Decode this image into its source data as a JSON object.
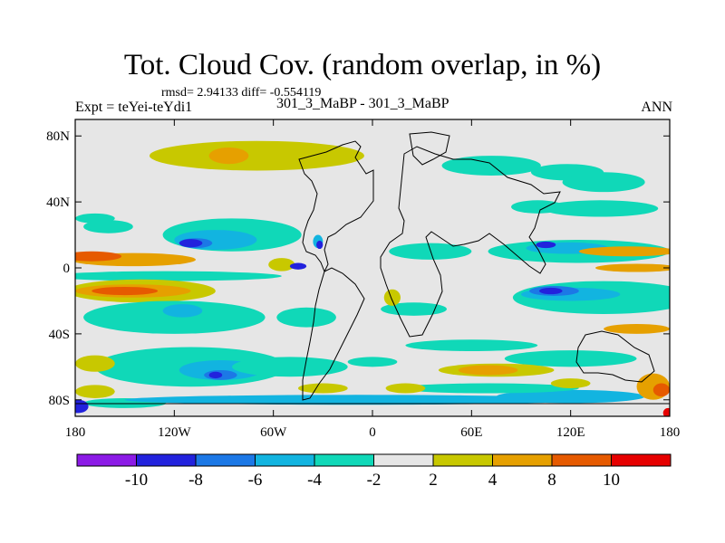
{
  "chart_data": {
    "type": "heatmap",
    "title": "Tot. Cloud Cov. (random overlap, in %)",
    "stats": "rmsd= 2.94133 diff= -0.554119",
    "experiment": "Expt = teYei-teYdi1",
    "case": "301_3_MaBP - 301_3_MaBP",
    "season": "ANN",
    "x_range": [
      -180,
      180
    ],
    "y_range": [
      -90,
      90
    ],
    "x_ticks": [
      {
        "value": -180,
        "label": "180"
      },
      {
        "value": -120,
        "label": "120W"
      },
      {
        "value": -60,
        "label": "60W"
      },
      {
        "value": 0,
        "label": "0"
      },
      {
        "value": 60,
        "label": "60E"
      },
      {
        "value": 120,
        "label": "120E"
      },
      {
        "value": 180,
        "label": "180"
      }
    ],
    "y_ticks": [
      {
        "value": 80,
        "label": "80N"
      },
      {
        "value": 40,
        "label": "40N"
      },
      {
        "value": 0,
        "label": "0"
      },
      {
        "value": -40,
        "label": "40S"
      },
      {
        "value": -80,
        "label": "80S"
      }
    ],
    "colorbar": {
      "levels": [
        "-10",
        "-8",
        "-6",
        "-4",
        "-2",
        "2",
        "4",
        "8",
        "10"
      ],
      "colors": [
        "#8c1be6",
        "#2222dd",
        "#1c78e6",
        "#12b4e0",
        "#10d8b8",
        "#e6e6e6",
        "#c8c800",
        "#e6a000",
        "#e65a00",
        "#e60000"
      ]
    },
    "background_color": "#e6e6e6",
    "regions": [
      {
        "cls": 7,
        "lon": -55,
        "lat": 70,
        "rx": 20,
        "ry": 6
      },
      {
        "cls": 6,
        "lon": -70,
        "lat": 68,
        "rx": 65,
        "ry": 9
      },
      {
        "cls": 7,
        "lon": -87,
        "lat": 68,
        "rx": 12,
        "ry": 5
      },
      {
        "cls": 4,
        "lon": 72,
        "lat": 62,
        "rx": 30,
        "ry": 6
      },
      {
        "cls": 4,
        "lon": 118,
        "lat": 58,
        "rx": 22,
        "ry": 5
      },
      {
        "cls": 4,
        "lon": 140,
        "lat": 52,
        "rx": 25,
        "ry": 6
      },
      {
        "cls": 4,
        "lon": 138,
        "lat": 36,
        "rx": 35,
        "ry": 5
      },
      {
        "cls": 4,
        "lon": 100,
        "lat": 37,
        "rx": 16,
        "ry": 4
      },
      {
        "cls": 4,
        "lon": -85,
        "lat": 20,
        "rx": 42,
        "ry": 10
      },
      {
        "cls": 3,
        "lon": -95,
        "lat": 17,
        "rx": 25,
        "ry": 6
      },
      {
        "cls": 2,
        "lon": -107,
        "lat": 15,
        "rx": 10,
        "ry": 3
      },
      {
        "cls": 1,
        "lon": -110,
        "lat": 15,
        "rx": 7,
        "ry": 2.5
      },
      {
        "cls": 4,
        "lon": -160,
        "lat": 25,
        "rx": 15,
        "ry": 4
      },
      {
        "cls": 4,
        "lon": -168,
        "lat": 30,
        "rx": 12,
        "ry": 3
      },
      {
        "cls": 7,
        "lon": -145,
        "lat": 5,
        "rx": 38,
        "ry": 4
      },
      {
        "cls": 8,
        "lon": -170,
        "lat": 7,
        "rx": 18,
        "ry": 3
      },
      {
        "cls": 4,
        "lon": -125,
        "lat": -5,
        "rx": 70,
        "ry": 3
      },
      {
        "cls": 6,
        "lon": -140,
        "lat": -14,
        "rx": 45,
        "ry": 7
      },
      {
        "cls": 7,
        "lon": -145,
        "lat": -14,
        "rx": 35,
        "ry": 4
      },
      {
        "cls": 8,
        "lon": -150,
        "lat": -14,
        "rx": 20,
        "ry": 2.5
      },
      {
        "cls": 4,
        "lon": -120,
        "lat": -30,
        "rx": 55,
        "ry": 10
      },
      {
        "cls": 3,
        "lon": -115,
        "lat": -26,
        "rx": 12,
        "ry": 4
      },
      {
        "cls": 4,
        "lon": -110,
        "lat": -60,
        "rx": 58,
        "ry": 12
      },
      {
        "cls": 3,
        "lon": -92,
        "lat": -62,
        "rx": 25,
        "ry": 6
      },
      {
        "cls": 2,
        "lon": -92,
        "lat": -65,
        "rx": 10,
        "ry": 3
      },
      {
        "cls": 1,
        "lon": -95,
        "lat": -65,
        "rx": 4,
        "ry": 2
      },
      {
        "cls": 4,
        "lon": -150,
        "lat": -82,
        "rx": 25,
        "ry": 3
      },
      {
        "cls": 3,
        "lon": -10,
        "lat": -80,
        "rx": 140,
        "ry": 3
      },
      {
        "cls": 3,
        "lon": 120,
        "lat": -78,
        "rx": 45,
        "ry": 4
      },
      {
        "cls": 6,
        "lon": -168,
        "lat": -58,
        "rx": 12,
        "ry": 5
      },
      {
        "cls": 6,
        "lon": -168,
        "lat": -75,
        "rx": 12,
        "ry": 4
      },
      {
        "cls": 4,
        "lon": -40,
        "lat": -30,
        "rx": 18,
        "ry": 6
      },
      {
        "cls": 4,
        "lon": -50,
        "lat": -60,
        "rx": 35,
        "ry": 6
      },
      {
        "cls": 4,
        "lon": 35,
        "lat": 10,
        "rx": 25,
        "ry": 5
      },
      {
        "cls": 6,
        "lon": -55,
        "lat": 2,
        "rx": 8,
        "ry": 4
      },
      {
        "cls": 1,
        "lon": -45,
        "lat": 1,
        "rx": 5,
        "ry": 2
      },
      {
        "cls": 3,
        "lon": -33,
        "lat": 16,
        "rx": 3,
        "ry": 4
      },
      {
        "cls": 1,
        "lon": -32,
        "lat": 14,
        "rx": 2,
        "ry": 2.5
      },
      {
        "cls": 4,
        "lon": 25,
        "lat": -25,
        "rx": 20,
        "ry": 4
      },
      {
        "cls": 6,
        "lon": 12,
        "lat": -18,
        "rx": 5,
        "ry": 5
      },
      {
        "cls": 4,
        "lon": 125,
        "lat": 10,
        "rx": 55,
        "ry": 7
      },
      {
        "cls": 3,
        "lon": 118,
        "lat": 12,
        "rx": 25,
        "ry": 3.5
      },
      {
        "cls": 1,
        "lon": 105,
        "lat": 14,
        "rx": 6,
        "ry": 2
      },
      {
        "cls": 7,
        "lon": 155,
        "lat": 10,
        "rx": 30,
        "ry": 3
      },
      {
        "cls": 7,
        "lon": 160,
        "lat": 0,
        "rx": 25,
        "ry": 2.5
      },
      {
        "cls": 4,
        "lon": 140,
        "lat": -18,
        "rx": 55,
        "ry": 10
      },
      {
        "cls": 3,
        "lon": 120,
        "lat": -16,
        "rx": 30,
        "ry": 4
      },
      {
        "cls": 2,
        "lon": 110,
        "lat": -14,
        "rx": 15,
        "ry": 3
      },
      {
        "cls": 1,
        "lon": 108,
        "lat": -14,
        "rx": 7,
        "ry": 2
      },
      {
        "cls": 7,
        "lon": 160,
        "lat": -37,
        "rx": 20,
        "ry": 3
      },
      {
        "cls": 4,
        "lon": 120,
        "lat": -55,
        "rx": 40,
        "ry": 5
      },
      {
        "cls": 4,
        "lon": 60,
        "lat": -47,
        "rx": 40,
        "ry": 3.5
      },
      {
        "cls": 4,
        "lon": 0,
        "lat": -57,
        "rx": 15,
        "ry": 3
      },
      {
        "cls": 6,
        "lon": 75,
        "lat": -62,
        "rx": 35,
        "ry": 4
      },
      {
        "cls": 7,
        "lon": 70,
        "lat": -62,
        "rx": 18,
        "ry": 3
      },
      {
        "cls": 4,
        "lon": 70,
        "lat": -73,
        "rx": 55,
        "ry": 3
      },
      {
        "cls": 6,
        "lon": 20,
        "lat": -73,
        "rx": 12,
        "ry": 3
      },
      {
        "cls": 6,
        "lon": -30,
        "lat": -73,
        "rx": 15,
        "ry": 3
      },
      {
        "cls": 6,
        "lon": 120,
        "lat": -70,
        "rx": 12,
        "ry": 3
      },
      {
        "cls": 7,
        "lon": 170,
        "lat": -72,
        "rx": 10,
        "ry": 8
      },
      {
        "cls": 8,
        "lon": 175,
        "lat": -74,
        "rx": 5,
        "ry": 4
      },
      {
        "cls": 1,
        "lon": -178,
        "lat": -84,
        "rx": 6,
        "ry": 4
      },
      {
        "cls": 9,
        "lon": 179,
        "lat": -88,
        "rx": 3,
        "ry": 3
      }
    ]
  }
}
